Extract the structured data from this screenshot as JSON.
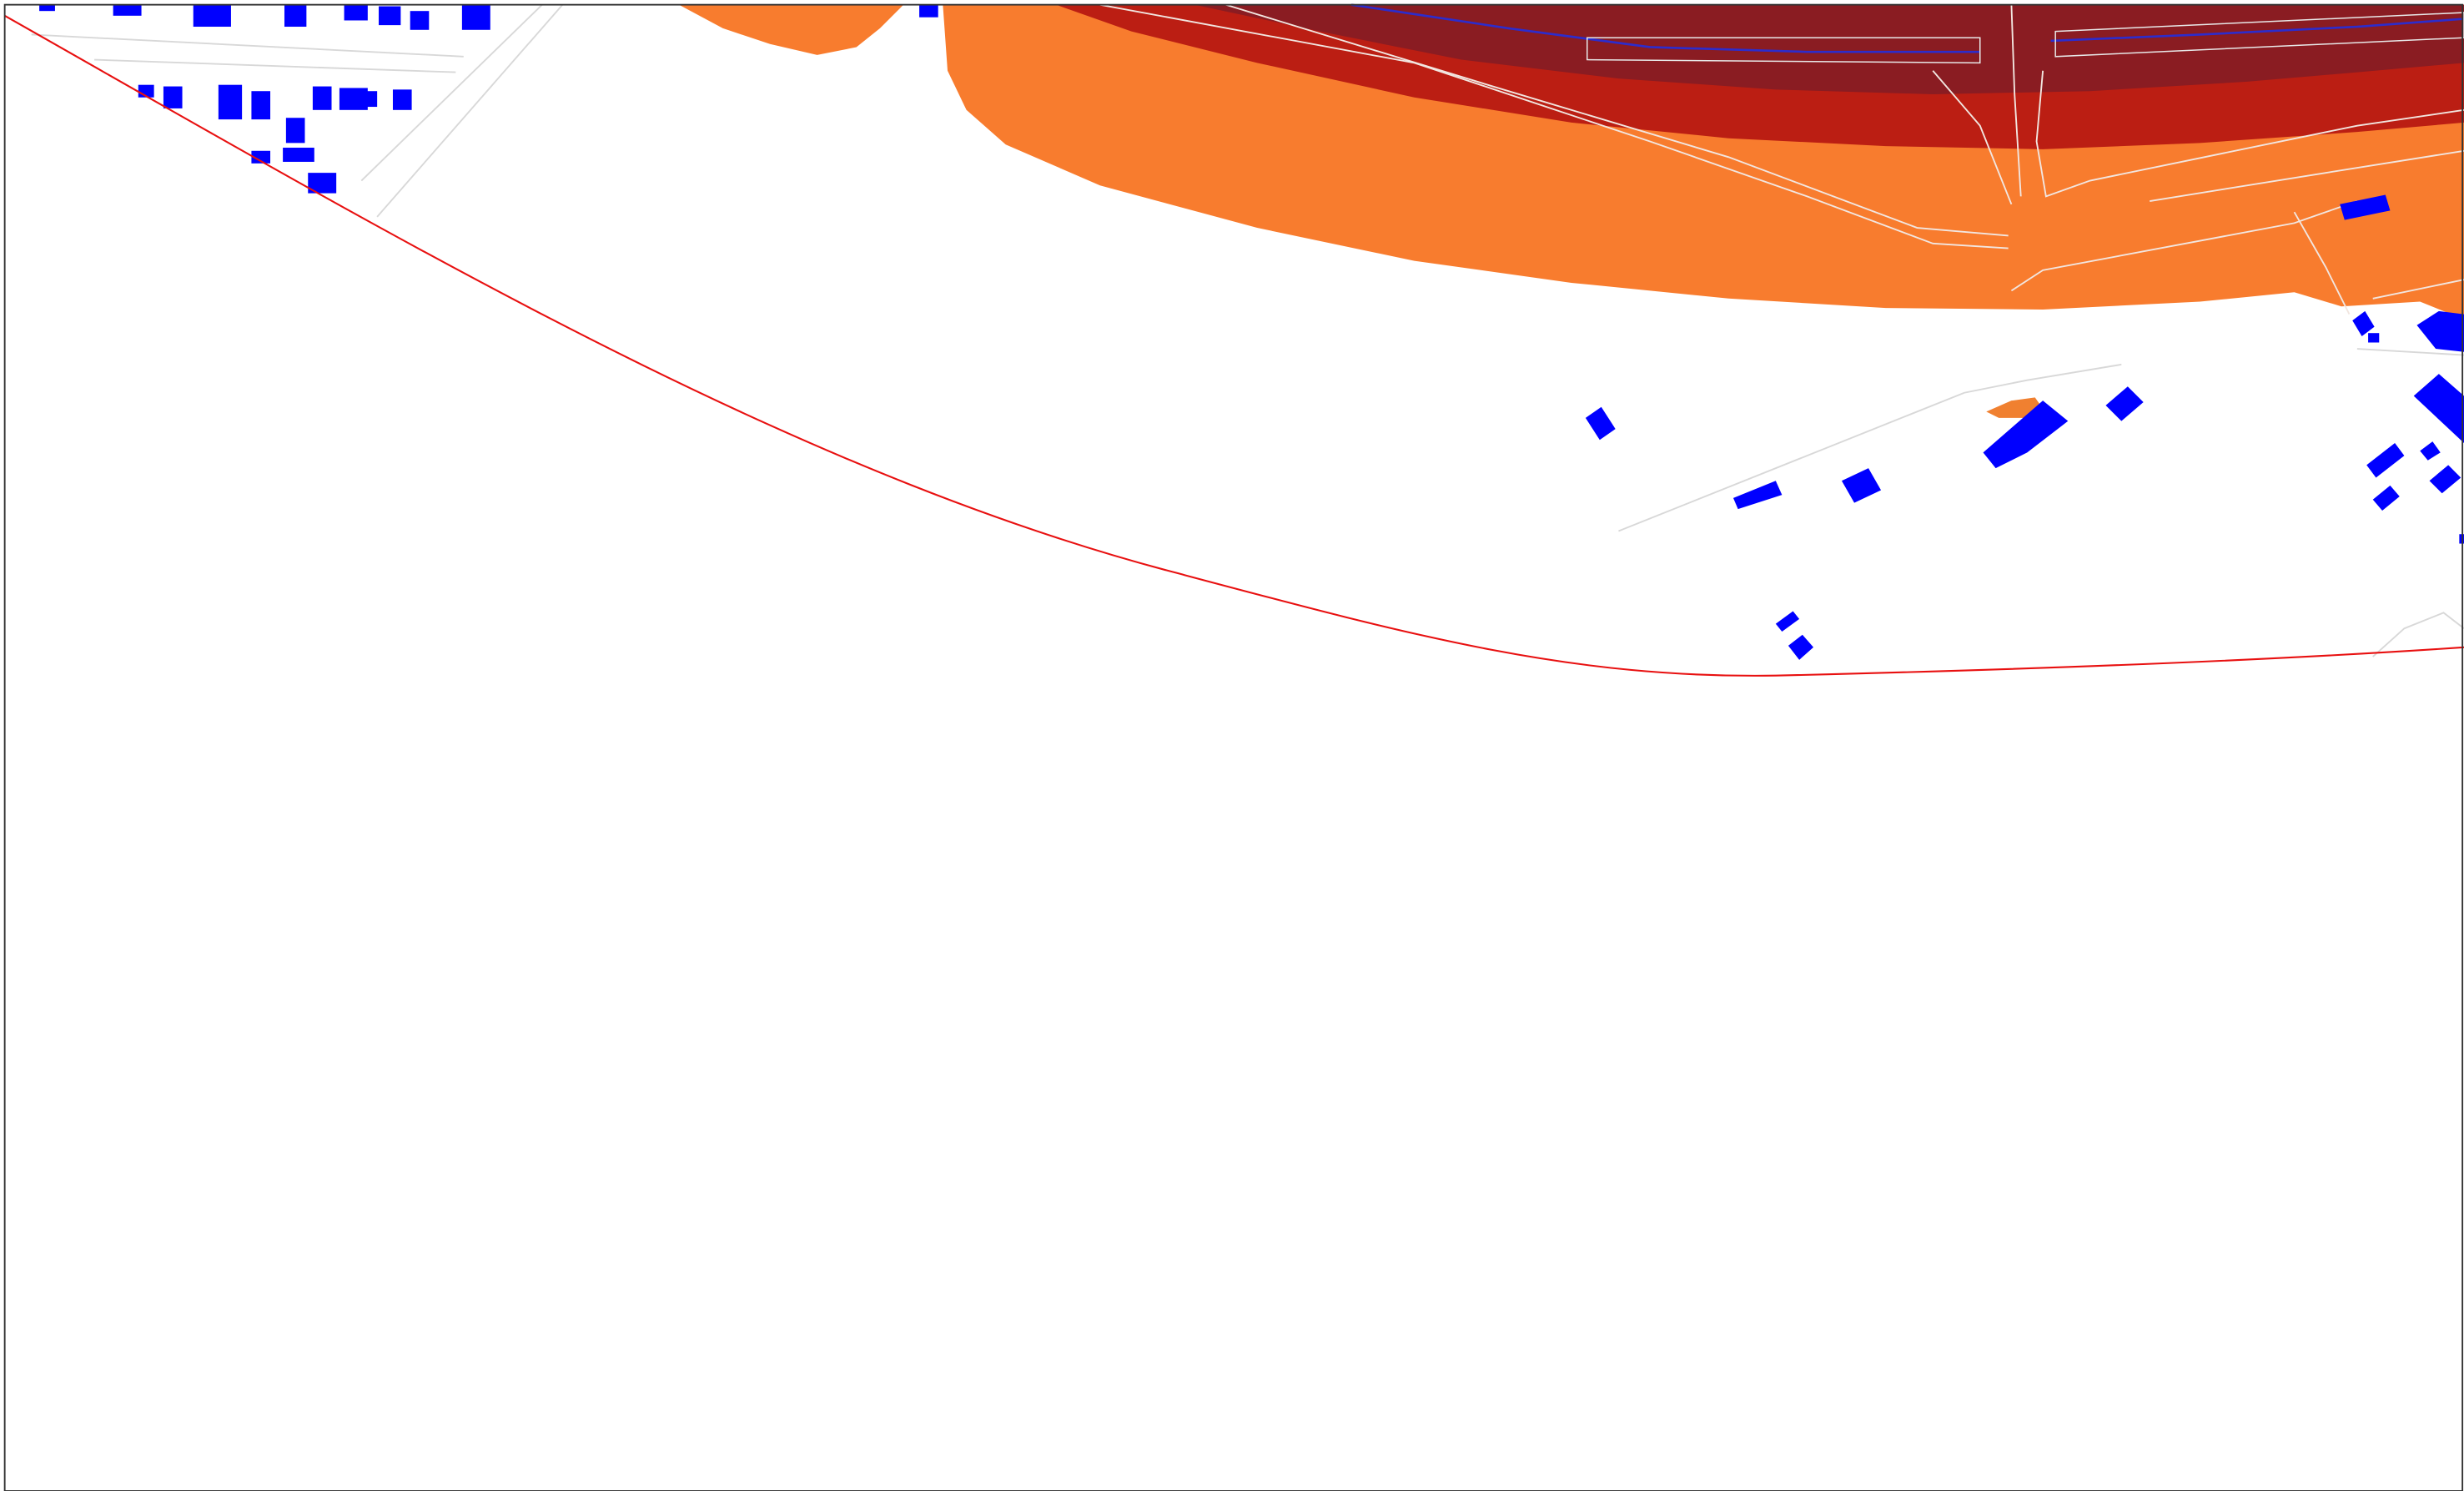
{
  "map": {
    "colors": {
      "background": "#ffffff",
      "frame": "#333333",
      "noise_zone_lowest": "#f87c2e",
      "noise_zone_middle": "#bb1e13",
      "noise_zone_highest": "#8a1c22",
      "buildings": "#0000ff",
      "roads": "#cfcfcf",
      "rail_track": "#2c2ccc",
      "study_boundary": "#e81010"
    },
    "layers": {
      "noise_zones": [
        "noise-zone-lowest",
        "noise-zone-middle",
        "noise-zone-highest"
      ],
      "buildings": "building-footprints",
      "roads": "road-lines",
      "rail": "rail-corridor",
      "boundary": "study-boundary-line"
    }
  }
}
